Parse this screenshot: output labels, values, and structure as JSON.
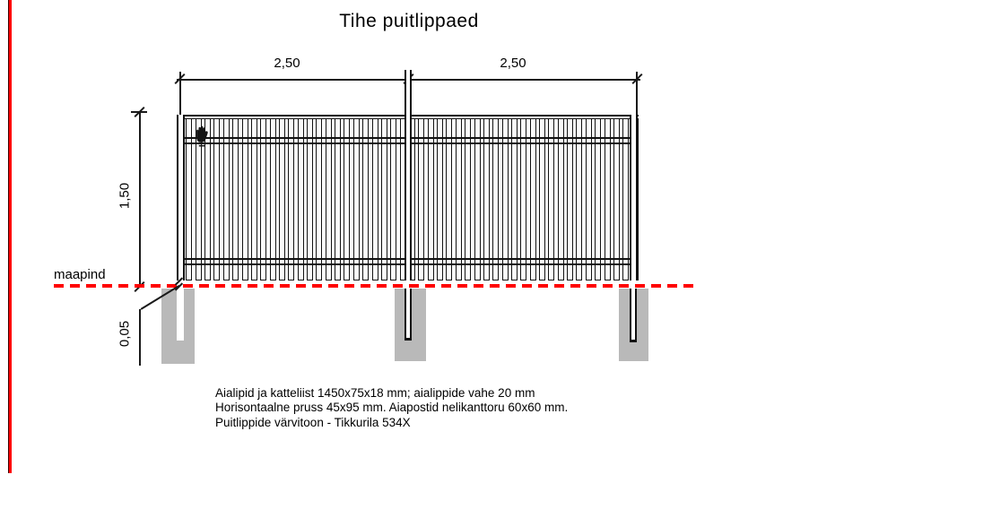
{
  "title": "Tihe puitlippaed",
  "labels": {
    "ground": "maapind"
  },
  "dimensions": {
    "panel_left": "2,50",
    "panel_right": "2,50",
    "fence_height": "1,50",
    "ground_gap": "0,05"
  },
  "notes": {
    "line1": "Aialipid ja katteliist 1450x75x18 mm; aialippide vahe 20 mm",
    "line2": "Horisontaalne pruss 45x95 mm. Aiapostid nelikanttoru 60x60 mm.",
    "line3": "Puitlippide värvitoon - Tikkurila 534X"
  },
  "fence": {
    "slat_count": 50,
    "post_count": 3
  },
  "icons": {
    "cursor": "hand-drag-icon"
  },
  "colors": {
    "ground_line": "#ff0000",
    "sheet_border": "#ff0000",
    "footing": "#b9b9b9",
    "stroke": "#1a1a1a"
  }
}
